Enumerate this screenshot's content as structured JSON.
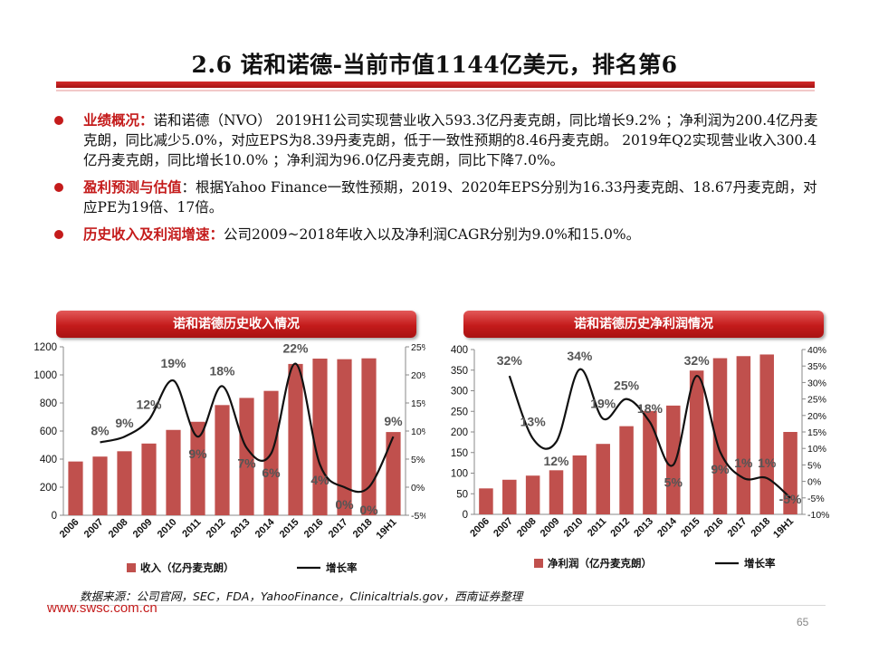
{
  "title": "2.6 诺和诺德-当前市值1144亿美元，排名第6",
  "bullets": [
    {
      "key": "业绩概况：",
      "text": "诺和诺德（NVO） 2019H1公司实现营业收入593.3亿丹麦克朗，同比增长9.2% ；净利润为200.4亿丹麦克朗，同比减少5.0%，对应EPS为8.39丹麦克朗，低于一致性预期的8.46丹麦克朗。 2019年Q2实现营业收入300.4亿丹麦克朗，同比增长10.0% ；净利润为96.0亿丹麦克朗，同比下降7.0%。"
    },
    {
      "key": "盈利预测与估值",
      "text": "：根据Yahoo Finance一致性预期，2019、2020年EPS分别为16.33丹麦克朗、18.67丹麦克朗，对应PE为19倍、17倍。"
    },
    {
      "key": "历史收入及利润增速：",
      "text": "公司2009~2018年收入以及净利润CAGR分别为9.0%和15.0%。"
    }
  ],
  "chart_data": [
    {
      "type": "bar",
      "title": "诺和诺德历史收入情况",
      "categories": [
        "2006",
        "2007",
        "2008",
        "2009",
        "2010",
        "2011",
        "2012",
        "2013",
        "2014",
        "2015",
        "2016",
        "2017",
        "2018",
        "19H1"
      ],
      "series": [
        {
          "name": "收入（亿丹麦克朗）",
          "type": "bar",
          "axis": "left",
          "values": [
            383,
            418,
            456,
            511,
            608,
            666,
            785,
            836,
            886,
            1078,
            1116,
            1112,
            1118,
            593
          ]
        },
        {
          "name": "增长率",
          "type": "line",
          "axis": "right",
          "values": [
            null,
            8,
            9,
            12,
            19,
            9,
            18,
            7,
            6,
            22,
            4,
            0,
            0,
            9
          ]
        }
      ],
      "data_labels": [
        "8%",
        "9%",
        "12%",
        "19%",
        "9%",
        "18%",
        "7%",
        "6%",
        "22%",
        "4%",
        "0%",
        "0%",
        "9%"
      ],
      "ylim_left": [
        0,
        1200
      ],
      "yticks_left": [
        0,
        200,
        400,
        600,
        800,
        1000,
        1200
      ],
      "ylim_right": [
        -5,
        25
      ],
      "yticks_right": [
        "-5%",
        "0%",
        "5%",
        "10%",
        "15%",
        "20%",
        "25%"
      ],
      "legend": [
        "收入（亿丹麦克朗）",
        "增长率"
      ],
      "colors": {
        "bar": "#c0504d",
        "line": "#111111",
        "label": "#555555"
      }
    },
    {
      "type": "bar",
      "title": "诺和诺德历史净利润情况",
      "categories": [
        "2006",
        "2007",
        "2008",
        "2009",
        "2010",
        "2011",
        "2012",
        "2013",
        "2014",
        "2015",
        "2016",
        "2017",
        "2018",
        "19H1"
      ],
      "series": [
        {
          "name": "净利润（亿丹麦克朗）",
          "type": "bar",
          "axis": "left",
          "values": [
            63,
            84,
            94,
            107,
            143,
            171,
            214,
            251,
            264,
            349,
            379,
            384,
            388,
            200
          ]
        },
        {
          "name": "增长率",
          "type": "line",
          "axis": "right",
          "values": [
            null,
            32,
            13,
            12,
            34,
            19,
            25,
            18,
            5,
            32,
            9,
            1,
            1,
            -5
          ]
        }
      ],
      "data_labels": [
        "32%",
        "13%",
        "12%",
        "34%",
        "19%",
        "25%",
        "18%",
        "5%",
        "32%",
        "9%",
        "1%",
        "1%",
        "-5%"
      ],
      "ylim_left": [
        0,
        400
      ],
      "yticks_left": [
        0,
        50,
        100,
        150,
        200,
        250,
        300,
        350,
        400
      ],
      "ylim_right": [
        -10,
        40
      ],
      "yticks_right": [
        "-10%",
        "-5%",
        "0%",
        "5%",
        "10%",
        "15%",
        "20%",
        "25%",
        "30%",
        "35%",
        "40%"
      ],
      "legend": [
        "净利润（亿丹麦克朗）",
        "增长率"
      ],
      "colors": {
        "bar": "#c0504d",
        "line": "#111111",
        "label": "#555555"
      }
    }
  ],
  "source": "数据来源：公司官网，SEC，FDA，YahooFinance，Clinicaltrials.gov，西南证券整理",
  "url": "www.swsc.com.cn",
  "page_number": "65"
}
